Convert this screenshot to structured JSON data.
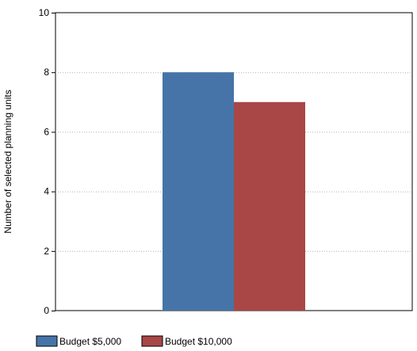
{
  "chart_data": {
    "type": "bar",
    "categories": [
      ""
    ],
    "series": [
      {
        "name": "Budget $5,000",
        "values": [
          8
        ],
        "color": "#4674a8"
      },
      {
        "name": "Budget $10,000",
        "values": [
          7
        ],
        "color": "#a84746"
      }
    ],
    "xlabel": "",
    "ylabel": "Number of selected planning units",
    "ylim": [
      0,
      10
    ],
    "yticks": [
      "0",
      "2",
      "4",
      "6",
      "8",
      "10"
    ],
    "grid": true,
    "legend_position": "bottom-left"
  }
}
